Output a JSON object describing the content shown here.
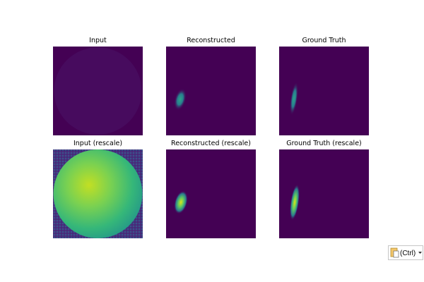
{
  "panels": [
    {
      "title": "Input"
    },
    {
      "title": "Reconstructed"
    },
    {
      "title": "Ground Truth"
    },
    {
      "title": "Input (rescale)"
    },
    {
      "title": "Reconstructed (rescale)"
    },
    {
      "title": "Ground Truth (rescale)"
    }
  ],
  "paste_button": {
    "label": "(Ctrl)"
  }
}
